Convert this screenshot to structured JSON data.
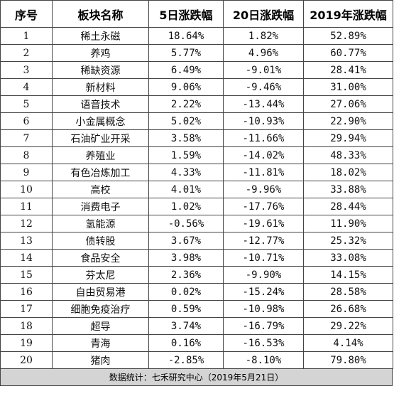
{
  "table": {
    "headers": [
      "序号",
      "板块名称",
      "5日涨跌幅",
      "20日涨跌幅",
      "2019年涨跌幅"
    ],
    "rows": [
      [
        "1",
        "稀土永磁",
        "18.64%",
        "1.82%",
        "52.89%"
      ],
      [
        "2",
        "养鸡",
        "5.77%",
        "4.96%",
        "60.77%"
      ],
      [
        "3",
        "稀缺资源",
        "6.49%",
        "-9.01%",
        "28.41%"
      ],
      [
        "4",
        "新材料",
        "9.06%",
        "-9.46%",
        "31.00%"
      ],
      [
        "5",
        "语音技术",
        "2.22%",
        "-13.44%",
        "27.06%"
      ],
      [
        "6",
        "小金属概念",
        "5.02%",
        "-10.93%",
        "22.90%"
      ],
      [
        "7",
        "石油矿业开采",
        "3.58%",
        "-11.66%",
        "29.94%"
      ],
      [
        "8",
        "养殖业",
        "1.59%",
        "-14.02%",
        "48.33%"
      ],
      [
        "9",
        "有色冶炼加工",
        "4.33%",
        "-11.81%",
        "18.02%"
      ],
      [
        "10",
        "高校",
        "4.01%",
        "-9.96%",
        "33.88%"
      ],
      [
        "11",
        "消费电子",
        "1.02%",
        "-17.76%",
        "28.44%"
      ],
      [
        "12",
        "氢能源",
        "-0.56%",
        "-19.61%",
        "11.90%"
      ],
      [
        "13",
        "债转股",
        "3.67%",
        "-12.77%",
        "25.32%"
      ],
      [
        "14",
        "食品安全",
        "3.98%",
        "-10.71%",
        "33.08%"
      ],
      [
        "15",
        "芬太尼",
        "2.36%",
        "-9.90%",
        "14.15%"
      ],
      [
        "16",
        "自由贸易港",
        "0.02%",
        "-15.24%",
        "28.58%"
      ],
      [
        "17",
        "细胞免疫治疗",
        "0.59%",
        "-10.98%",
        "26.68%"
      ],
      [
        "18",
        "超导",
        "3.74%",
        "-16.79%",
        "29.22%"
      ],
      [
        "19",
        "青海",
        "0.16%",
        "-16.53%",
        "4.14%"
      ],
      [
        "20",
        "猪肉",
        "-2.85%",
        "-8.10%",
        "79.80%"
      ]
    ]
  },
  "footer": {
    "text": "数据统计：七禾研究中心（2019年5月21日）"
  },
  "colors": {
    "footer_bg": "#d4d4d4",
    "border": "#444444"
  }
}
